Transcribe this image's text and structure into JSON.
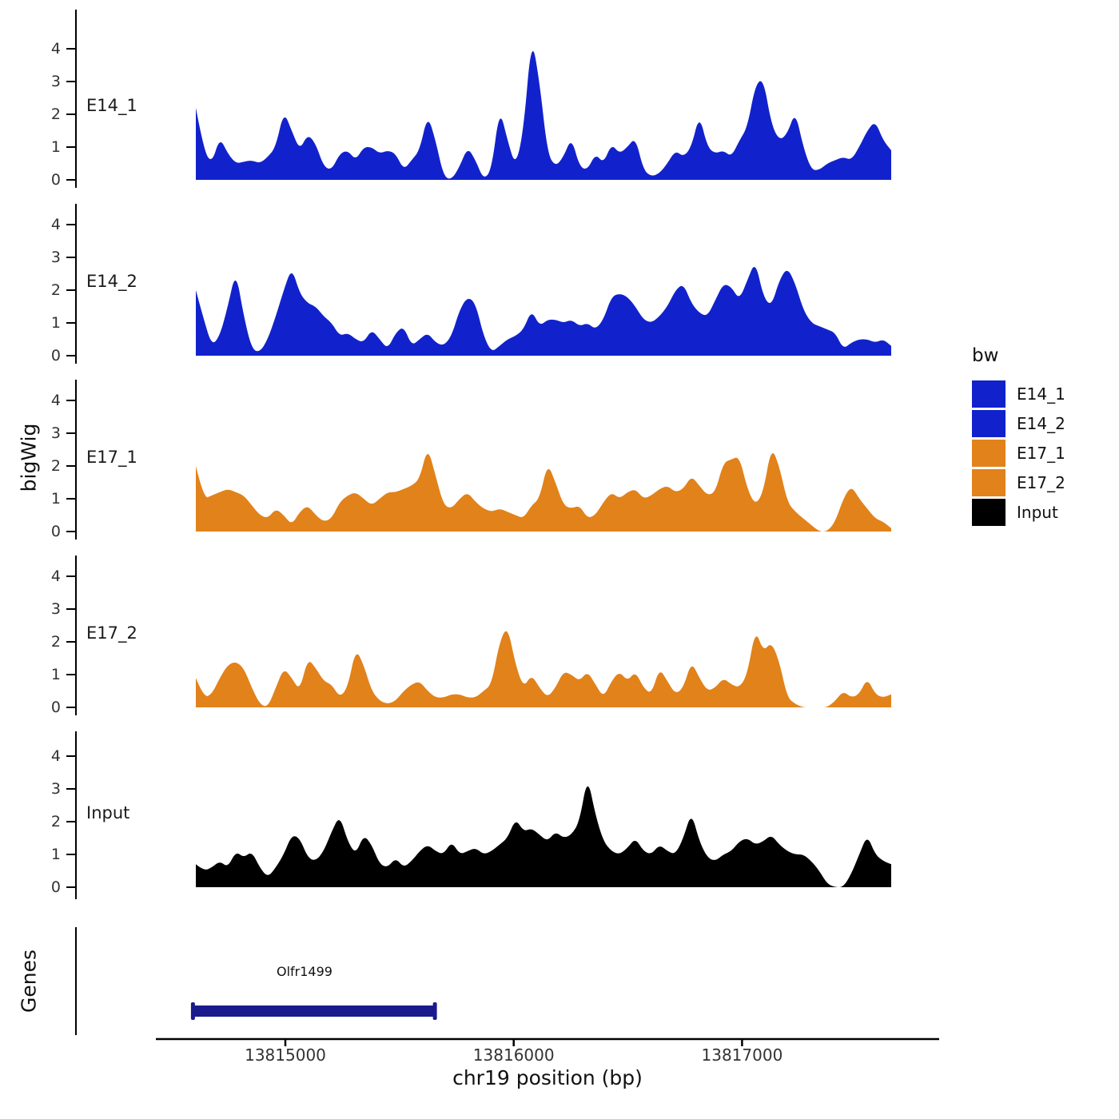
{
  "chart_data": {
    "type": "area",
    "title": "",
    "ylabel": "bigWig",
    "xlabel": "chr19 position (bp)",
    "x_start": 13814608,
    "x_step": 35,
    "x_end": 13817653,
    "ylim": [
      0,
      4.6
    ],
    "yticks": [
      0,
      1,
      2,
      3,
      4
    ],
    "xticks": [
      13815000,
      13816000,
      13817000
    ],
    "grid": "off",
    "series": [
      {
        "name": "E14_1",
        "color": "#1122CC",
        "values": [
          2.2,
          0.9,
          0.5,
          1.3,
          0.8,
          0.5,
          0.55,
          0.6,
          0.5,
          0.7,
          1.0,
          2.1,
          1.5,
          0.9,
          1.4,
          1.1,
          0.4,
          0.3,
          0.8,
          0.9,
          0.6,
          1.0,
          1.0,
          0.8,
          0.9,
          0.8,
          0.3,
          0.6,
          0.9,
          2.0,
          1.2,
          0.1,
          0,
          0.4,
          1.0,
          0.6,
          0,
          0.3,
          2.2,
          1.2,
          0.4,
          1.5,
          4.4,
          3.0,
          0.8,
          0.4,
          0.7,
          1.3,
          0.4,
          0.3,
          0.8,
          0.5,
          1.1,
          0.8,
          1.0,
          1.3,
          0.3,
          0.1,
          0.2,
          0.5,
          0.9,
          0.7,
          1.0,
          2.0,
          1.0,
          0.8,
          0.9,
          0.7,
          1.2,
          1.6,
          2.9,
          3.1,
          1.7,
          1.2,
          1.4,
          2.1,
          1.0,
          0.3,
          0.3,
          0.5,
          0.6,
          0.7,
          0.6,
          1.0,
          1.5,
          1.8,
          1.2,
          0.9
        ]
      },
      {
        "name": "E14_2",
        "color": "#1122CC",
        "values": [
          2.0,
          1.1,
          0.3,
          0.6,
          1.5,
          2.6,
          1.2,
          0.2,
          0.1,
          0.5,
          1.2,
          2.0,
          2.7,
          1.9,
          1.6,
          1.5,
          1.2,
          1.0,
          0.6,
          0.7,
          0.5,
          0.4,
          0.8,
          0.5,
          0.2,
          0.7,
          0.9,
          0.3,
          0.5,
          0.7,
          0.4,
          0.3,
          0.6,
          1.4,
          1.8,
          1.6,
          0.6,
          0.1,
          0.3,
          0.5,
          0.6,
          0.8,
          1.4,
          0.9,
          1.1,
          1.1,
          1.0,
          1.1,
          0.9,
          1.0,
          0.8,
          1.1,
          1.8,
          1.9,
          1.8,
          1.5,
          1.1,
          1.0,
          1.2,
          1.5,
          2.0,
          2.2,
          1.6,
          1.3,
          1.2,
          1.7,
          2.2,
          2.1,
          1.7,
          2.3,
          2.9,
          1.8,
          1.5,
          2.3,
          2.7,
          2.2,
          1.4,
          1.0,
          0.9,
          0.8,
          0.7,
          0.2,
          0.4,
          0.5,
          0.5,
          0.4,
          0.5,
          0.3
        ]
      },
      {
        "name": "E17_1",
        "color": "#E2821A",
        "values": [
          2.0,
          1.0,
          1.1,
          1.2,
          1.3,
          1.2,
          1.1,
          0.8,
          0.5,
          0.4,
          0.7,
          0.5,
          0.2,
          0.6,
          0.8,
          0.5,
          0.3,
          0.4,
          0.9,
          1.1,
          1.2,
          1.0,
          0.8,
          1.0,
          1.2,
          1.2,
          1.3,
          1.4,
          1.6,
          2.6,
          1.7,
          0.8,
          0.7,
          1.0,
          1.2,
          0.9,
          0.7,
          0.6,
          0.7,
          0.6,
          0.5,
          0.4,
          0.8,
          1.0,
          2.1,
          1.5,
          0.8,
          0.7,
          0.8,
          0.4,
          0.5,
          0.9,
          1.2,
          1.0,
          1.2,
          1.3,
          1.0,
          1.1,
          1.3,
          1.4,
          1.2,
          1.3,
          1.7,
          1.4,
          1.1,
          1.2,
          2.1,
          2.2,
          2.3,
          1.3,
          0.8,
          1.2,
          2.6,
          2.0,
          0.9,
          0.6,
          0.4,
          0.2,
          0,
          0,
          0.3,
          1.0,
          1.4,
          1.0,
          0.7,
          0.4,
          0.3,
          0.1
        ]
      },
      {
        "name": "E17_2",
        "color": "#E2821A",
        "values": [
          0.9,
          0.3,
          0.4,
          0.9,
          1.3,
          1.4,
          1.2,
          0.6,
          0.1,
          0,
          0.6,
          1.2,
          0.9,
          0.5,
          1.5,
          1.2,
          0.8,
          0.7,
          0.3,
          0.6,
          1.8,
          1.3,
          0.5,
          0.2,
          0.1,
          0.2,
          0.5,
          0.7,
          0.8,
          0.5,
          0.3,
          0.3,
          0.4,
          0.4,
          0.3,
          0.3,
          0.5,
          0.7,
          2.0,
          2.5,
          1.3,
          0.6,
          1.0,
          0.6,
          0.3,
          0.6,
          1.1,
          1.0,
          0.8,
          1.1,
          0.7,
          0.3,
          0.8,
          1.1,
          0.8,
          1.1,
          0.6,
          0.4,
          1.2,
          0.8,
          0.4,
          0.6,
          1.4,
          0.9,
          0.5,
          0.6,
          0.9,
          0.7,
          0.6,
          1.0,
          2.4,
          1.7,
          2.0,
          1.4,
          0.3,
          0.1,
          0,
          0,
          0,
          0,
          0.2,
          0.5,
          0.3,
          0.4,
          0.9,
          0.4,
          0.3,
          0.4
        ]
      },
      {
        "name": "Input",
        "color": "#000000",
        "values": [
          0.7,
          0.5,
          0.6,
          0.8,
          0.6,
          1.1,
          0.9,
          1.1,
          0.6,
          0.3,
          0.6,
          1.0,
          1.6,
          1.5,
          0.9,
          0.8,
          1.1,
          1.7,
          2.2,
          1.4,
          1.0,
          1.6,
          1.3,
          0.7,
          0.6,
          0.9,
          0.6,
          0.8,
          1.1,
          1.3,
          1.1,
          1.0,
          1.4,
          1.0,
          1.1,
          1.2,
          1.0,
          1.1,
          1.3,
          1.5,
          2.1,
          1.7,
          1.8,
          1.6,
          1.4,
          1.7,
          1.5,
          1.6,
          2.0,
          3.4,
          2.2,
          1.4,
          1.1,
          1.0,
          1.2,
          1.5,
          1.1,
          1.0,
          1.3,
          1.1,
          1.0,
          1.5,
          2.3,
          1.4,
          0.9,
          0.8,
          1.0,
          1.1,
          1.4,
          1.5,
          1.3,
          1.4,
          1.6,
          1.3,
          1.1,
          1.0,
          1.0,
          0.8,
          0.5,
          0.1,
          0,
          0,
          0.4,
          1.0,
          1.6,
          1.0,
          0.8,
          0.7
        ]
      }
    ],
    "genes_track": {
      "label": "Genes",
      "genes": [
        {
          "name": "Olfr1499",
          "start": 13814590,
          "end": 13815660,
          "color": "#1A1A8C"
        }
      ]
    },
    "legend": {
      "title": "bw",
      "position": "right",
      "entries": [
        {
          "label": "E14_1",
          "color": "#1122CC"
        },
        {
          "label": "E14_2",
          "color": "#1122CC"
        },
        {
          "label": "E17_1",
          "color": "#E2821A"
        },
        {
          "label": "E17_2",
          "color": "#E2821A"
        },
        {
          "label": "Input",
          "color": "#000000"
        }
      ]
    }
  }
}
